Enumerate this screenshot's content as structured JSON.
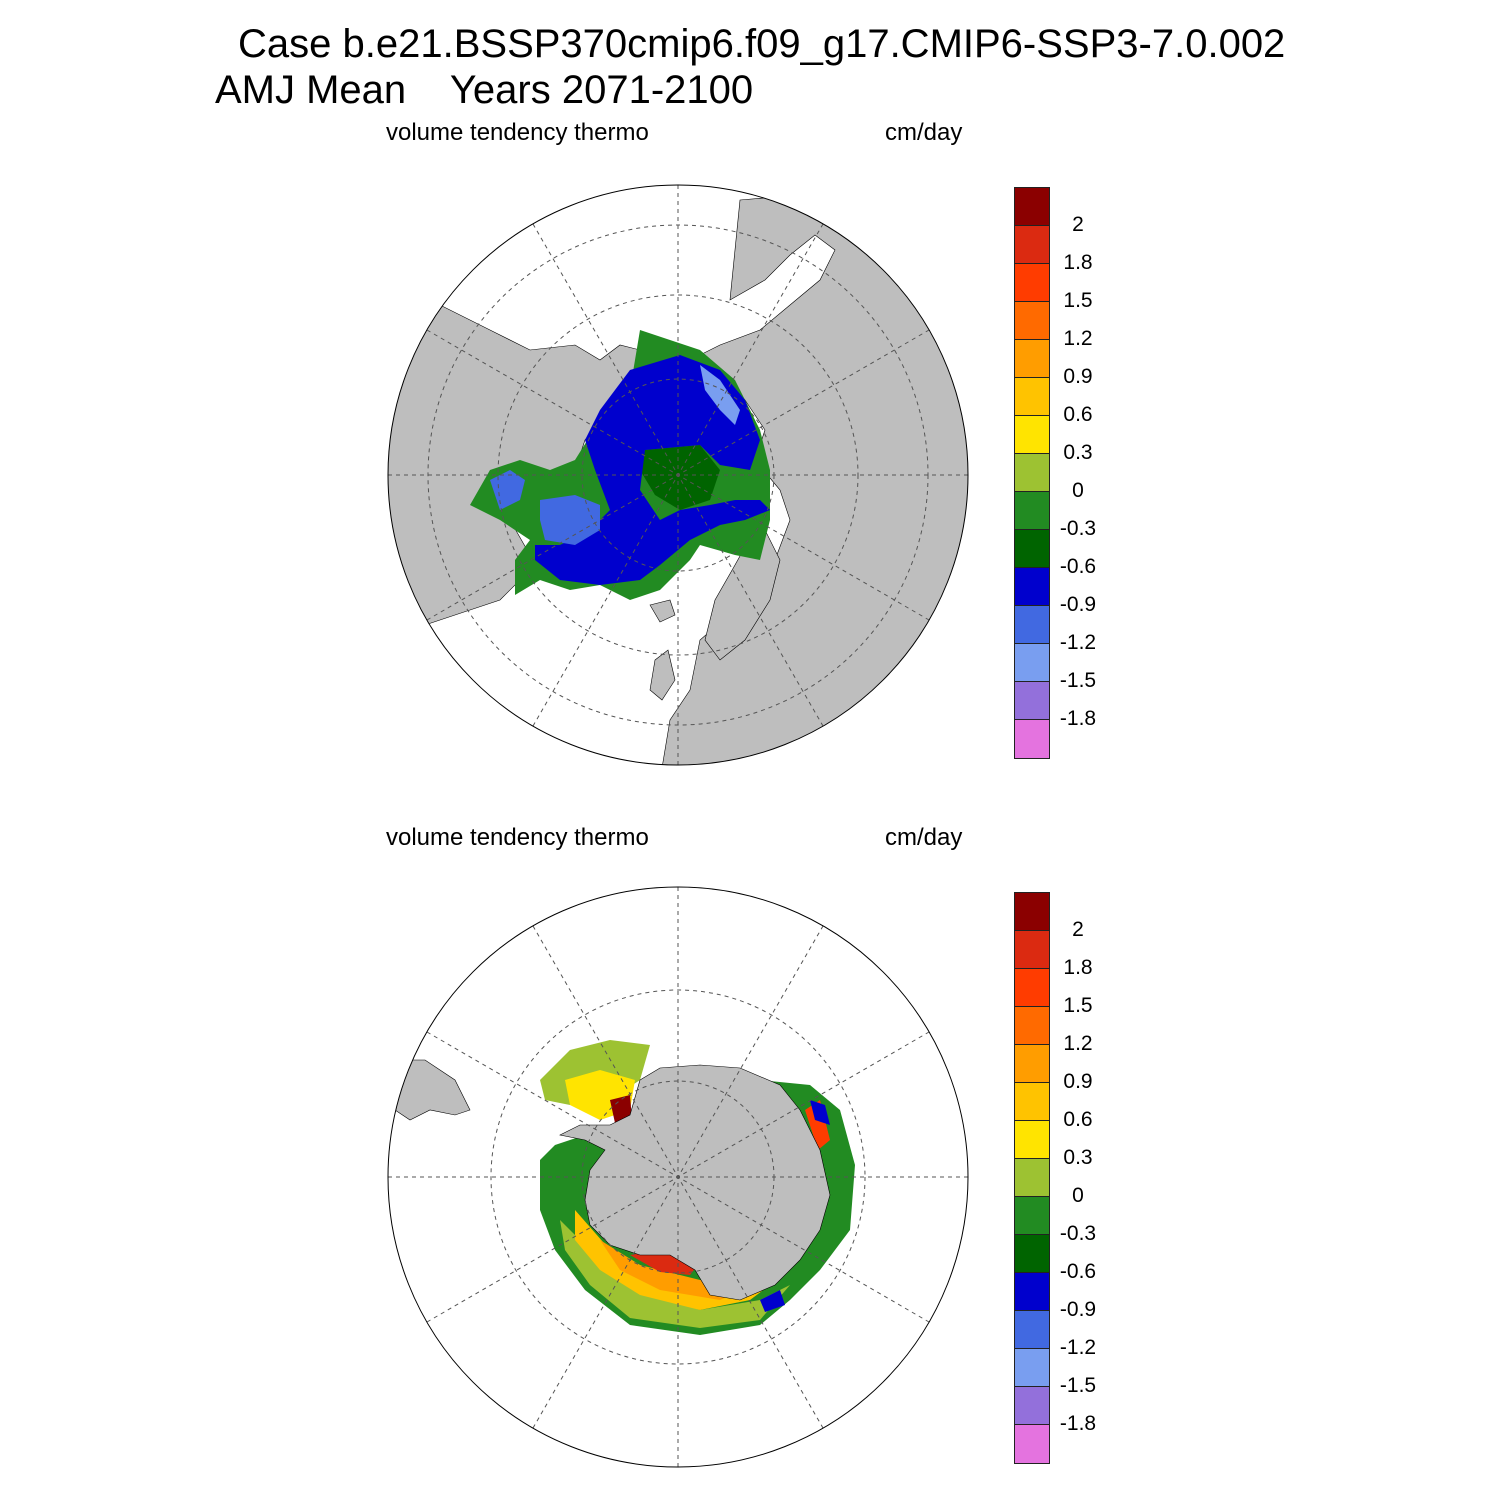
{
  "header": {
    "title_line1": "Case b.e21.BSSP370cmip6.f09_g17.CMIP6-SSP3-7.0.002",
    "title_line2": "AMJ Mean    Years 2071-2100"
  },
  "panels": [
    {
      "left_label": "volume tendency thermo",
      "right_label": "cm/day",
      "hemisphere": "north"
    },
    {
      "left_label": "volume tendency thermo",
      "right_label": "cm/day",
      "hemisphere": "south"
    }
  ],
  "colorbar": {
    "labels": [
      "2",
      "1.8",
      "1.5",
      "1.2",
      "0.9",
      "0.6",
      "0.3",
      "0",
      "-0.3",
      "-0.6",
      "-0.9",
      "-1.2",
      "-1.5",
      "-1.8"
    ],
    "colors": [
      "#8b0000",
      "#db2a11",
      "#ff3c00",
      "#ff6a00",
      "#ff9d00",
      "#ffc300",
      "#ffe400",
      "#9dc232",
      "#228b22",
      "#006400",
      "#0000cd",
      "#4169e1",
      "#799ef0",
      "#9370db",
      "#e473df"
    ]
  },
  "map_colors": {
    "land": "#bebebe",
    "ocean": "#ffffff",
    "grid": "#555555"
  }
}
